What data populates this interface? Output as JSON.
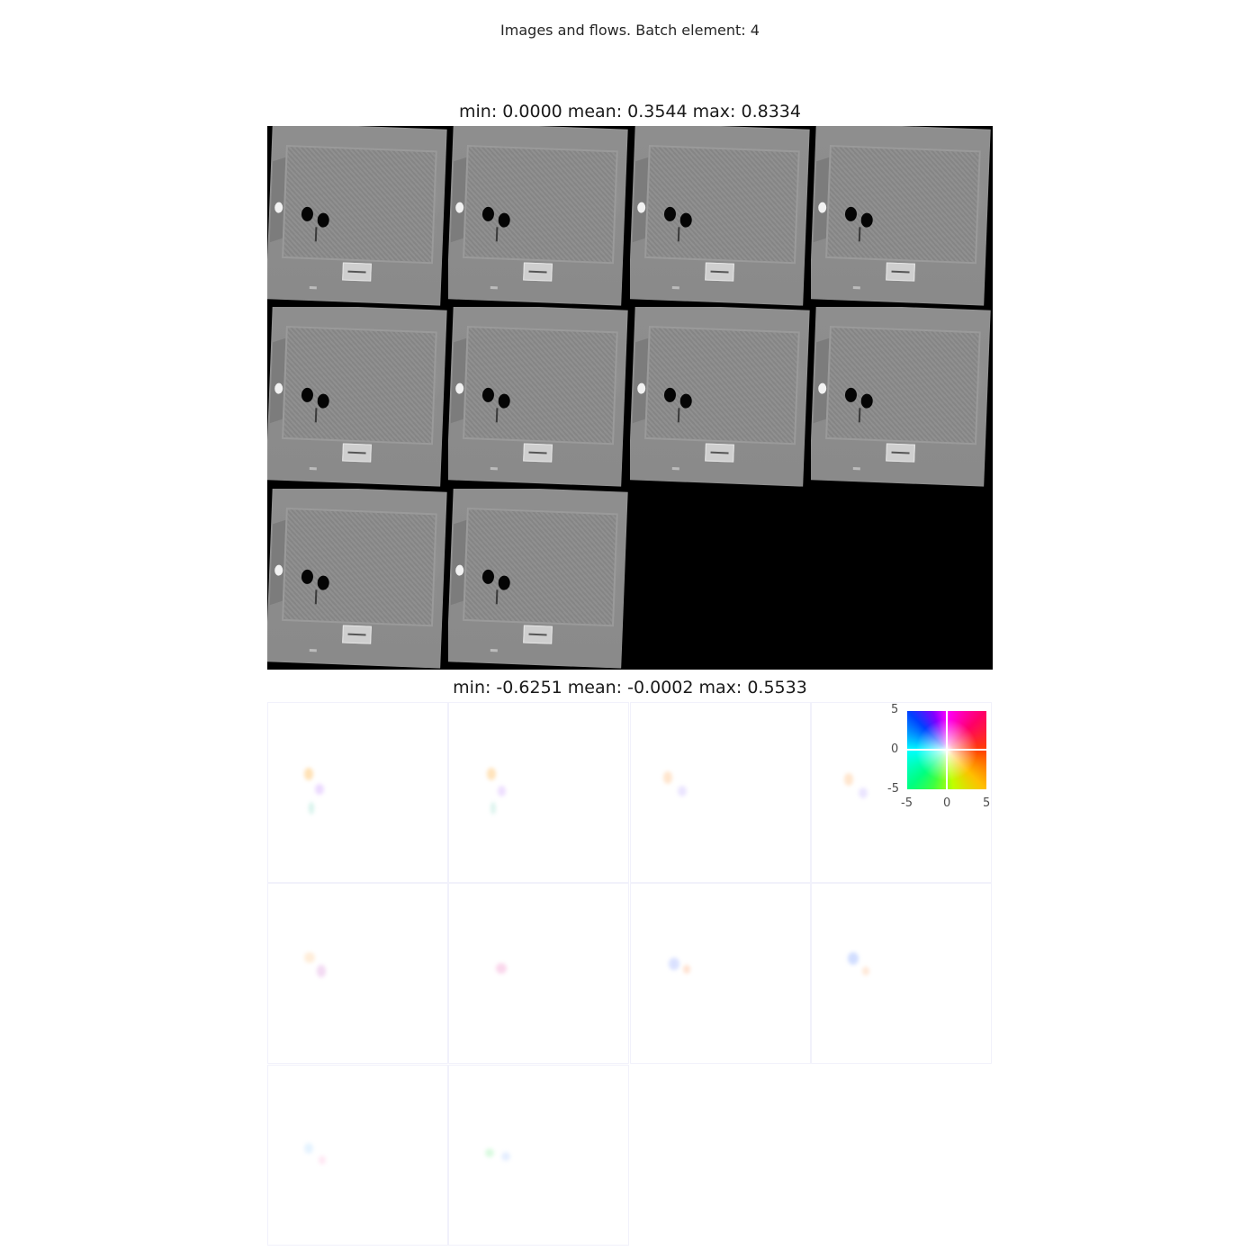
{
  "figure": {
    "suptitle": "Images and flows. Batch element: 4",
    "images_panel_title": "min: 0.0000 mean: 0.3544 max: 0.8334",
    "flows_panel_title": "min: -0.6251 mean: -0.0002 max: 0.5533"
  },
  "images_grid": {
    "rows": 3,
    "cols": 4,
    "filled_tiles": 10
  },
  "flows_grid": {
    "rows": 3,
    "cols": 4,
    "filled_tiles": 10
  },
  "legend": {
    "y_ticks": [
      "5",
      "0",
      "-5"
    ],
    "x_ticks": [
      "-5",
      "0",
      "5"
    ]
  },
  "colors": {
    "background": "#000000",
    "frame_gray": "#8c8c8c"
  }
}
